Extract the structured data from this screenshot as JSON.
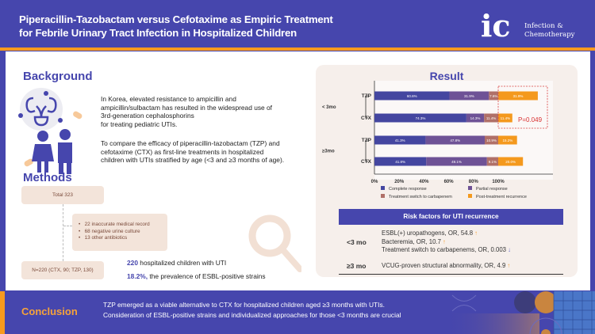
{
  "header": {
    "title_line1": "Piperacillin-Tazobactam versus Cefotaxime as Empiric Treatment",
    "title_line2": "for Febrile Urinary Tract Infection in Hospitalized Children",
    "logo_mark": "ic",
    "logo_line1": "Infection &",
    "logo_line2": "Chemotherapy"
  },
  "background": {
    "heading": "Background",
    "para1": [
      "In Korea, elevated resistance to ampicillin and",
      "ampicillin/sulbactam has resulted in the widespread use of",
      "3rd-generation cephalosphorins",
      "for treating pediatric UTIs."
    ],
    "para2": [
      "To compare the efficacy of piperacillin-tazobactam (TZP) and",
      "cefotaxime (CTX) as first-line treatments in hospitalized",
      "children with UTIs stratified by age (<3 and ≥3 months of age)."
    ]
  },
  "methods": {
    "heading": "Methods",
    "total": "Total 323",
    "exclusions": [
      "22 inaccurate medical record",
      "68 negative urine culture",
      "13 other antibiotics"
    ],
    "final": "N=220 (CTX, 90; TZP, 130)",
    "stat1_num": "220",
    "stat1_text": " hospitalized children with UTI",
    "stat2_num": "18.2%,",
    "stat2_text": " the prevalence of ESBL-positive strains"
  },
  "result": {
    "heading": "Result",
    "p_value": "P=0.049"
  },
  "chart_data": {
    "type": "bar",
    "orientation": "horizontal",
    "stacked": true,
    "groups": [
      {
        "label": "< 3mo",
        "rows": [
          "TZP",
          "CTX"
        ]
      },
      {
        "label": "≥3mo",
        "rows": [
          "TZP",
          "CTX"
        ]
      }
    ],
    "series": [
      {
        "name": "Complete response",
        "color": "#4446a0",
        "values": [
          60.6,
          74.3,
          41.3,
          41.8
        ],
        "labels": [
          "60.6%",
          "74.3%",
          "41.3%",
          "41.8%"
        ]
      },
      {
        "name": "Partial response",
        "color": "#6e5296",
        "values": [
          31.9,
          14.3,
          47.8,
          49.1
        ],
        "labels": [
          "31.9%",
          "14.3%",
          "47.8%",
          "49.1%"
        ]
      },
      {
        "name": "Treatment switch to carbapenem",
        "color": "#b07068",
        "values": [
          7.6,
          11.4,
          10.9,
          9.1
        ],
        "labels": [
          "7.6%",
          "11.4%",
          "10.9%",
          "9.1%"
        ]
      },
      {
        "name": "Post-treatment recurrence",
        "color": "#f4991d",
        "values": [
          31.9,
          11.4,
          15.2,
          20.0
        ],
        "labels": [
          "31.9%",
          "11.4%",
          "15.2%",
          "20.0%"
        ]
      }
    ],
    "xticks": [
      "0%",
      "20%",
      "40%",
      "60%",
      "80%",
      "100%"
    ],
    "xlim": [
      0,
      140
    ],
    "legend": "bottom"
  },
  "risk": {
    "title": "Risk factors for UTI recurrence",
    "rows": [
      {
        "age": "<3 mo",
        "items": [
          {
            "text": "ESBL(+) uropathogens, OR, 54.8",
            "dir": "↑"
          },
          {
            "text": "Bacteremia, OR, 10.7",
            "dir": "↑"
          },
          {
            "text": "Treatment switch to carbapenems, OR, 0.003",
            "dir": "↓"
          }
        ]
      },
      {
        "age": "≥3 mo",
        "items": [
          {
            "text": "VCUG-proven structural abnormality, OR, 4.9",
            "dir": "↑"
          }
        ]
      }
    ]
  },
  "conclusion": {
    "heading": "Conclusion",
    "line1": "TZP emerged as a viable alternative to CTX for hospitalized children aged ≥3 months with UTIs.",
    "line2": "Consideration of ESBL-positive strains and individualized approaches for those <3 months are crucial"
  }
}
